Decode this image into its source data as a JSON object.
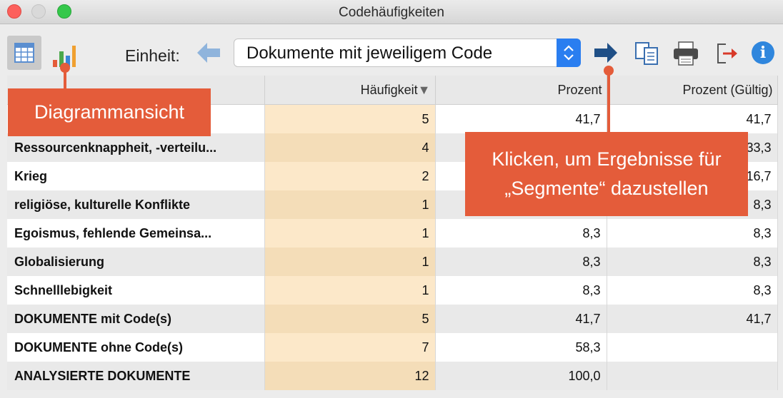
{
  "window": {
    "title": "Codehäufigkeiten"
  },
  "toolbar": {
    "table_view_icon": "table-icon",
    "chart_view_icon": "bar-chart-icon",
    "unit_label": "Einheit:",
    "unit_value": "Dokumente mit jeweiligem Code",
    "prev_icon": "arrow-left-icon",
    "next_icon": "arrow-right-icon",
    "copy_icon": "copy-icon",
    "print_icon": "print-icon",
    "export_icon": "export-icon",
    "info_icon": "info-icon",
    "info_glyph": "i"
  },
  "table": {
    "columns": [
      "",
      "Häufigkeit",
      "Prozent",
      "Prozent (Gültig)"
    ],
    "sort_indicator": "▼",
    "rows": [
      {
        "label": "",
        "freq": "5",
        "pct": "41,7",
        "valid": "41,7"
      },
      {
        "label": "Ressourcenknappheit, -verteilu...",
        "freq": "4",
        "pct": "",
        "valid": "33,3"
      },
      {
        "label": "Krieg",
        "freq": "2",
        "pct": "",
        "valid": "16,7"
      },
      {
        "label": "religiöse, kulturelle Konflikte",
        "freq": "1",
        "pct": "",
        "valid": "8,3"
      },
      {
        "label": "Egoismus, fehlende Gemeinsa...",
        "freq": "1",
        "pct": "8,3",
        "valid": "8,3"
      },
      {
        "label": "Globalisierung",
        "freq": "1",
        "pct": "8,3",
        "valid": "8,3"
      },
      {
        "label": "Schnelllebigkeit",
        "freq": "1",
        "pct": "8,3",
        "valid": "8,3"
      },
      {
        "label": "DOKUMENTE mit Code(s)",
        "freq": "5",
        "pct": "41,7",
        "valid": "41,7"
      },
      {
        "label": "DOKUMENTE ohne Code(s)",
        "freq": "7",
        "pct": "58,3",
        "valid": ""
      },
      {
        "label": "ANALYSIERTE DOKUMENTE",
        "freq": "12",
        "pct": "100,0",
        "valid": ""
      }
    ]
  },
  "callouts": {
    "diagram": "Diagrammansicht",
    "segments_line1": "Klicken, um Ergebnisse für",
    "segments_line2": "„Segmente“ dazustellen"
  },
  "colors": {
    "callout": "#e45c3a",
    "accent": "#2a7ef0",
    "frequency_column": "#f4ddb8"
  }
}
